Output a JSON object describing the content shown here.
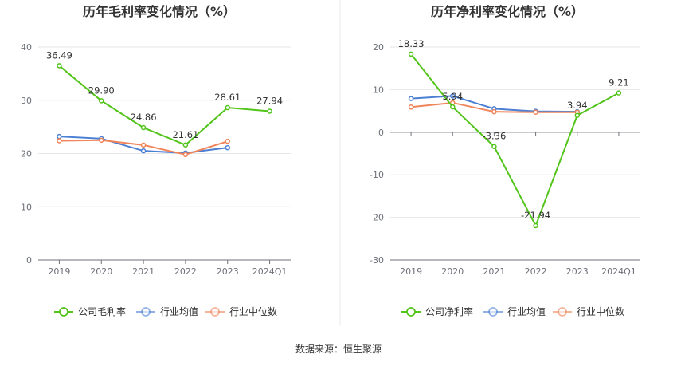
{
  "source_text": "数据来源：恒生聚源",
  "chart_data": [
    {
      "type": "line",
      "title": "历年毛利率变化情况（%）",
      "categories": [
        "2019",
        "2020",
        "2021",
        "2022",
        "2023",
        "2024Q1"
      ],
      "ylim": [
        0,
        40
      ],
      "yticks": [
        0,
        10,
        20,
        30,
        40
      ],
      "grid": true,
      "legend_position": "bottom",
      "series": [
        {
          "name": "公司毛利率",
          "color": "#52c41a",
          "values": [
            36.49,
            29.9,
            24.86,
            21.61,
            28.61,
            27.94
          ],
          "labels": [
            "36.49",
            "29.90",
            "24.86",
            "21.61",
            "28.61",
            "27.94"
          ]
        },
        {
          "name": "行业均值",
          "color": "#4a7fd4",
          "values": [
            23.2,
            22.8,
            20.5,
            20.1,
            21.1,
            null
          ]
        },
        {
          "name": "行业中位数",
          "color": "#f0845a",
          "values": [
            22.4,
            22.5,
            21.6,
            19.8,
            22.3,
            null
          ]
        }
      ]
    },
    {
      "type": "line",
      "title": "历年净利率变化情况（%）",
      "categories": [
        "2019",
        "2020",
        "2021",
        "2022",
        "2023",
        "2024Q1"
      ],
      "ylim": [
        -30,
        20
      ],
      "yticks": [
        -30,
        -20,
        -10,
        0,
        10,
        20
      ],
      "grid": true,
      "legend_position": "bottom",
      "series": [
        {
          "name": "公司净利率",
          "color": "#52c41a",
          "values": [
            18.33,
            5.94,
            -3.36,
            -21.94,
            3.94,
            9.21
          ],
          "labels": [
            "18.33",
            "5.94",
            "-3.36",
            "-21.94",
            "3.94",
            "9.21"
          ]
        },
        {
          "name": "行业均值",
          "color": "#4a7fd4",
          "values": [
            7.9,
            8.5,
            5.5,
            4.9,
            4.8,
            null
          ]
        },
        {
          "name": "行业中位数",
          "color": "#f0845a",
          "values": [
            5.9,
            6.9,
            4.8,
            4.7,
            4.7,
            null
          ]
        }
      ]
    }
  ]
}
